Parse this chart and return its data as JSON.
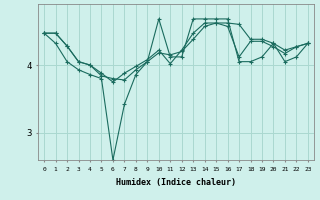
{
  "title": "",
  "xlabel": "Humidex (Indice chaleur)",
  "background_color": "#cff0eb",
  "line_color": "#1a6b5e",
  "grid_color": "#aad8d0",
  "xlim": [
    -0.5,
    23.5
  ],
  "ylim": [
    2.6,
    4.9
  ],
  "yticks": [
    3,
    4
  ],
  "xticks": [
    0,
    1,
    2,
    3,
    4,
    5,
    6,
    7,
    8,
    9,
    10,
    11,
    12,
    13,
    14,
    15,
    16,
    17,
    18,
    19,
    20,
    21,
    22,
    23
  ],
  "line1_x": [
    0,
    1,
    2,
    3,
    4,
    5,
    6,
    7,
    8,
    9,
    10,
    11,
    12,
    13,
    14,
    15,
    16,
    17,
    18,
    19,
    20,
    21,
    22,
    23
  ],
  "line1_y": [
    4.47,
    4.47,
    4.28,
    4.05,
    4.0,
    3.88,
    3.75,
    3.88,
    3.98,
    4.08,
    4.22,
    4.02,
    4.22,
    4.47,
    4.62,
    4.62,
    4.57,
    4.12,
    4.35,
    4.35,
    4.27,
    4.17,
    4.27,
    4.32
  ],
  "line2_x": [
    0,
    1,
    2,
    3,
    4,
    5,
    6,
    7,
    8,
    9,
    10,
    11,
    12,
    13,
    14,
    15,
    16,
    17,
    18,
    19,
    20,
    21,
    22,
    23
  ],
  "line2_y": [
    4.47,
    4.32,
    4.05,
    3.93,
    3.86,
    3.8,
    2.6,
    3.42,
    3.86,
    4.05,
    4.68,
    4.12,
    4.12,
    4.68,
    4.68,
    4.68,
    4.68,
    4.05,
    4.05,
    4.12,
    4.32,
    4.05,
    4.12,
    4.32
  ],
  "line3_x": [
    0,
    1,
    2,
    3,
    4,
    5,
    6,
    7,
    8,
    9,
    10,
    11,
    12,
    13,
    14,
    15,
    16,
    17,
    18,
    19,
    20,
    21,
    22,
    23
  ],
  "line3_y": [
    4.47,
    4.47,
    4.28,
    4.05,
    4.0,
    3.84,
    3.8,
    3.78,
    3.93,
    4.05,
    4.18,
    4.15,
    4.2,
    4.38,
    4.57,
    4.62,
    4.62,
    4.6,
    4.38,
    4.38,
    4.32,
    4.22,
    4.27,
    4.32
  ]
}
